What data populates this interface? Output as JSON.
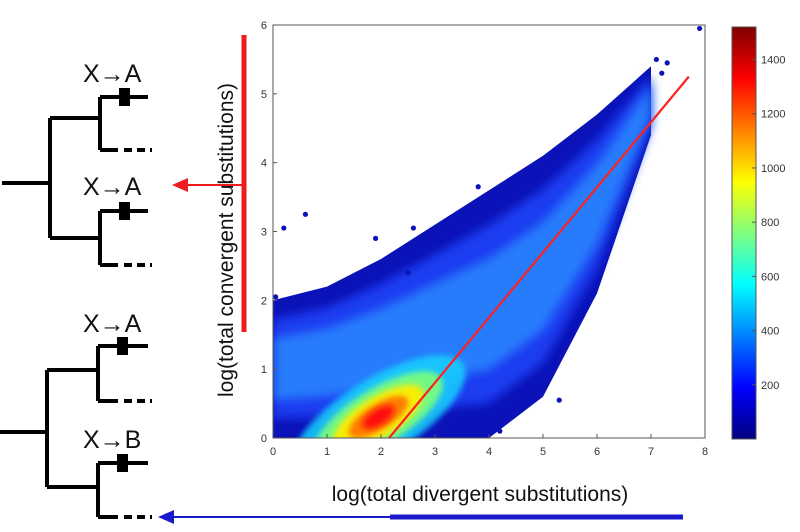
{
  "figure": {
    "trees": [
      {
        "upper_label": "X→A",
        "lower_label": "X→A"
      },
      {
        "upper_label": "X→A",
        "lower_label": "X→B"
      }
    ]
  },
  "chart_data": {
    "type": "heatmap",
    "title": "",
    "xlabel": "log(total divergent substitutions)",
    "ylabel": "log(total convergent substitutions)",
    "xlim": [
      0,
      8
    ],
    "ylim": [
      0,
      6
    ],
    "x_ticks": [
      "0",
      "1",
      "2",
      "3",
      "4",
      "5",
      "6",
      "7",
      "8"
    ],
    "y_ticks": [
      "0",
      "1",
      "2",
      "3",
      "4",
      "5",
      "6"
    ],
    "grid": false,
    "colorbar": {
      "min": 0,
      "max": 1520,
      "ticks": [
        "200",
        "400",
        "600",
        "800",
        "1000",
        "1200",
        "1400"
      ],
      "colormap": "jet"
    },
    "fit_line": {
      "color": "#ff2020",
      "points": [
        [
          2.15,
          0.0
        ],
        [
          7.7,
          5.25
        ]
      ]
    },
    "density_ridge": [
      {
        "x": 0.0,
        "y_low": 0.0,
        "y_high": 2.0
      },
      {
        "x": 1.0,
        "y_low": 0.0,
        "y_high": 2.2
      },
      {
        "x": 2.0,
        "y_low": 0.0,
        "y_high": 2.6
      },
      {
        "x": 3.0,
        "y_low": 0.0,
        "y_high": 3.1
      },
      {
        "x": 4.0,
        "y_low": 0.0,
        "y_high": 3.6
      },
      {
        "x": 5.0,
        "y_low": 0.6,
        "y_high": 4.1
      },
      {
        "x": 6.0,
        "y_low": 2.1,
        "y_high": 4.7
      },
      {
        "x": 7.0,
        "y_low": 4.4,
        "y_high": 5.4
      }
    ],
    "max_density_point": [
      2.1,
      0.1
    ],
    "outliers": [
      [
        7.9,
        5.95
      ],
      [
        7.3,
        5.45
      ],
      [
        7.1,
        5.5
      ],
      [
        7.2,
        5.3
      ],
      [
        0.2,
        3.05
      ],
      [
        0.6,
        3.25
      ],
      [
        1.9,
        2.9
      ],
      [
        2.6,
        3.05
      ],
      [
        3.8,
        3.65
      ],
      [
        5.3,
        0.55
      ],
      [
        0.05,
        2.05
      ],
      [
        2.5,
        2.4
      ],
      [
        4.2,
        0.1
      ]
    ]
  },
  "colors": {
    "red_arrow": "#ee1c1c",
    "blue_arrow": "#1a1acc"
  }
}
